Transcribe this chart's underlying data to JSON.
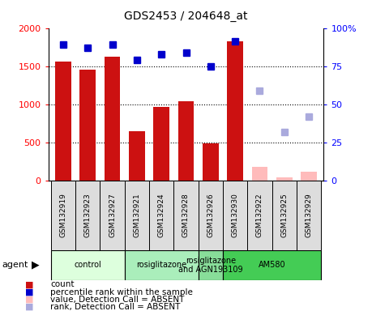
{
  "title": "GDS2453 / 204648_at",
  "samples": [
    "GSM132919",
    "GSM132923",
    "GSM132927",
    "GSM132921",
    "GSM132924",
    "GSM132928",
    "GSM132926",
    "GSM132930",
    "GSM132922",
    "GSM132925",
    "GSM132929"
  ],
  "bar_values": [
    1560,
    1450,
    1620,
    650,
    960,
    1040,
    490,
    1820,
    180,
    40,
    110
  ],
  "bar_absent": [
    false,
    false,
    false,
    false,
    false,
    false,
    false,
    false,
    true,
    true,
    true
  ],
  "percentile_values": [
    89,
    87,
    89,
    79,
    83,
    84,
    75,
    91,
    59,
    32,
    42
  ],
  "percentile_absent": [
    false,
    false,
    false,
    false,
    false,
    false,
    false,
    false,
    true,
    true,
    true
  ],
  "ylim_left": [
    0,
    2000
  ],
  "ylim_right": [
    0,
    100
  ],
  "yticks_left": [
    0,
    500,
    1000,
    1500,
    2000
  ],
  "yticks_right": [
    0,
    25,
    50,
    75,
    100
  ],
  "bar_color_present": "#cc1111",
  "bar_color_absent": "#ffbbbb",
  "dot_color_present": "#0000cc",
  "dot_color_absent": "#aaaadd",
  "groups": [
    {
      "label": "control",
      "start": 0,
      "end": 3,
      "color": "#ddffdd"
    },
    {
      "label": "rosiglitazone",
      "start": 3,
      "end": 6,
      "color": "#aaeebb"
    },
    {
      "label": "rosiglitazone\nand AGN193109",
      "start": 6,
      "end": 7,
      "color": "#88dd99"
    },
    {
      "label": "AM580",
      "start": 7,
      "end": 11,
      "color": "#44cc55"
    }
  ],
  "legend_items": [
    {
      "label": "count",
      "color": "#cc1111"
    },
    {
      "label": "percentile rank within the sample",
      "color": "#0000cc"
    },
    {
      "label": "value, Detection Call = ABSENT",
      "color": "#ffbbbb"
    },
    {
      "label": "rank, Detection Call = ABSENT",
      "color": "#aaaadd"
    }
  ]
}
